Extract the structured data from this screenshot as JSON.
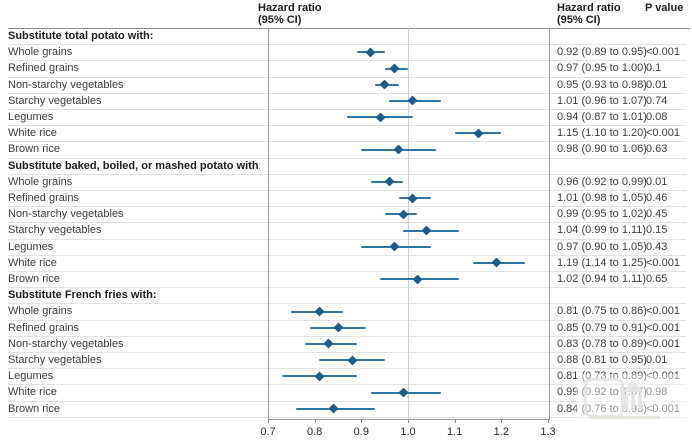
{
  "headers": {
    "plot_title": "Hazard ratio\n(95% CI)",
    "values_title": "Hazard ratio\n(95% CI)",
    "pvalue_title": "P value"
  },
  "colors": {
    "ci_line": "#2e74a4",
    "marker": "#1b5d8e",
    "reference_line": "#cfcfcf",
    "plot_border": "#9d9d9d",
    "row_separator": "#e1e1e1"
  },
  "chart_data": {
    "type": "forest",
    "title": "",
    "xlabel": "",
    "xlim": [
      0.7,
      1.3
    ],
    "reference_line": 1.0,
    "tick_labels": [
      "0.7",
      "0.8",
      "0.9",
      "1.0",
      "1.1",
      "1.2",
      "1.3"
    ],
    "grid": "row-separators",
    "groups": [
      {
        "label": "Substitute total potato with:",
        "rows": [
          {
            "label": "Whole grains",
            "est": 0.92,
            "lo": 0.89,
            "hi": 0.95,
            "hr_ci": "0.92 (0.89 to 0.95)",
            "p": "<0.001"
          },
          {
            "label": "Refined grains",
            "est": 0.97,
            "lo": 0.95,
            "hi": 1.0,
            "hr_ci": "0.97 (0.95 to 1.00)",
            "p": "0.1"
          },
          {
            "label": "Non-starchy vegetables",
            "est": 0.95,
            "lo": 0.93,
            "hi": 0.98,
            "hr_ci": "0.95 (0.93 to 0.98)",
            "p": "0.01"
          },
          {
            "label": "Starchy vegetables",
            "est": 1.01,
            "lo": 0.96,
            "hi": 1.07,
            "hr_ci": "1.01 (0.96 to 1.07)",
            "p": "0.74"
          },
          {
            "label": "Legumes",
            "est": 0.94,
            "lo": 0.87,
            "hi": 1.01,
            "hr_ci": "0.94 (0.87 to 1.01)",
            "p": "0.08"
          },
          {
            "label": "White rice",
            "est": 1.15,
            "lo": 1.1,
            "hi": 1.2,
            "hr_ci": "1.15 (1.10 to 1.20)",
            "p": "<0.001"
          },
          {
            "label": "Brown rice",
            "est": 0.98,
            "lo": 0.9,
            "hi": 1.06,
            "hr_ci": "0.98 (0.90 to 1.06)",
            "p": "0.63"
          }
        ]
      },
      {
        "label": "Substitute baked, boiled, or mashed potato with:",
        "rows": [
          {
            "label": "Whole grains",
            "est": 0.96,
            "lo": 0.92,
            "hi": 0.99,
            "hr_ci": "0.96 (0.92 to 0.99)",
            "p": "0.01"
          },
          {
            "label": "Refined grains",
            "est": 1.01,
            "lo": 0.98,
            "hi": 1.05,
            "hr_ci": "1.01 (0.98 to 1.05)",
            "p": "0.46"
          },
          {
            "label": "Non-starchy vegetables",
            "est": 0.99,
            "lo": 0.95,
            "hi": 1.02,
            "hr_ci": "0.99 (0.95 to 1.02)",
            "p": "0.45"
          },
          {
            "label": "Starchy vegetables",
            "est": 1.04,
            "lo": 0.99,
            "hi": 1.11,
            "hr_ci": "1.04 (0.99 to 1.11)",
            "p": "0.15"
          },
          {
            "label": "Legumes",
            "est": 0.97,
            "lo": 0.9,
            "hi": 1.05,
            "hr_ci": "0.97 (0.90 to 1.05)",
            "p": "0.43"
          },
          {
            "label": "White rice",
            "est": 1.19,
            "lo": 1.14,
            "hi": 1.25,
            "hr_ci": "1.19 (1.14 to 1.25)",
            "p": "<0.001"
          },
          {
            "label": "Brown rice",
            "est": 1.02,
            "lo": 0.94,
            "hi": 1.11,
            "hr_ci": "1.02 (0.94 to 1.11)",
            "p": "0.65"
          }
        ]
      },
      {
        "label": "Substitute French fries with:",
        "rows": [
          {
            "label": "Whole grains",
            "est": 0.81,
            "lo": 0.75,
            "hi": 0.86,
            "hr_ci": "0.81 (0.75 to 0.86)",
            "p": "<0.001"
          },
          {
            "label": "Refined grains",
            "est": 0.85,
            "lo": 0.79,
            "hi": 0.91,
            "hr_ci": "0.85 (0.79 to 0.91)",
            "p": "<0.001"
          },
          {
            "label": "Non-starchy vegetables",
            "est": 0.83,
            "lo": 0.78,
            "hi": 0.89,
            "hr_ci": "0.83 (0.78 to 0.89)",
            "p": "<0.001"
          },
          {
            "label": "Starchy vegetables",
            "est": 0.88,
            "lo": 0.81,
            "hi": 0.95,
            "hr_ci": "0.88 (0.81 to 0.95)",
            "p": "0.01"
          },
          {
            "label": "Legumes",
            "est": 0.81,
            "lo": 0.73,
            "hi": 0.89,
            "hr_ci": "0.81 (0.73 to 0.89)",
            "p": "<0.001"
          },
          {
            "label": "White rice",
            "est": 0.99,
            "lo": 0.92,
            "hi": 1.07,
            "hr_ci": "0.99 (0.92 to 1.07)",
            "p": "0.98"
          },
          {
            "label": "Brown rice",
            "est": 0.84,
            "lo": 0.76,
            "hi": 0.93,
            "hr_ci": "0.84 (0.76 to 0.93)",
            "p": "<0.001"
          }
        ]
      }
    ]
  }
}
